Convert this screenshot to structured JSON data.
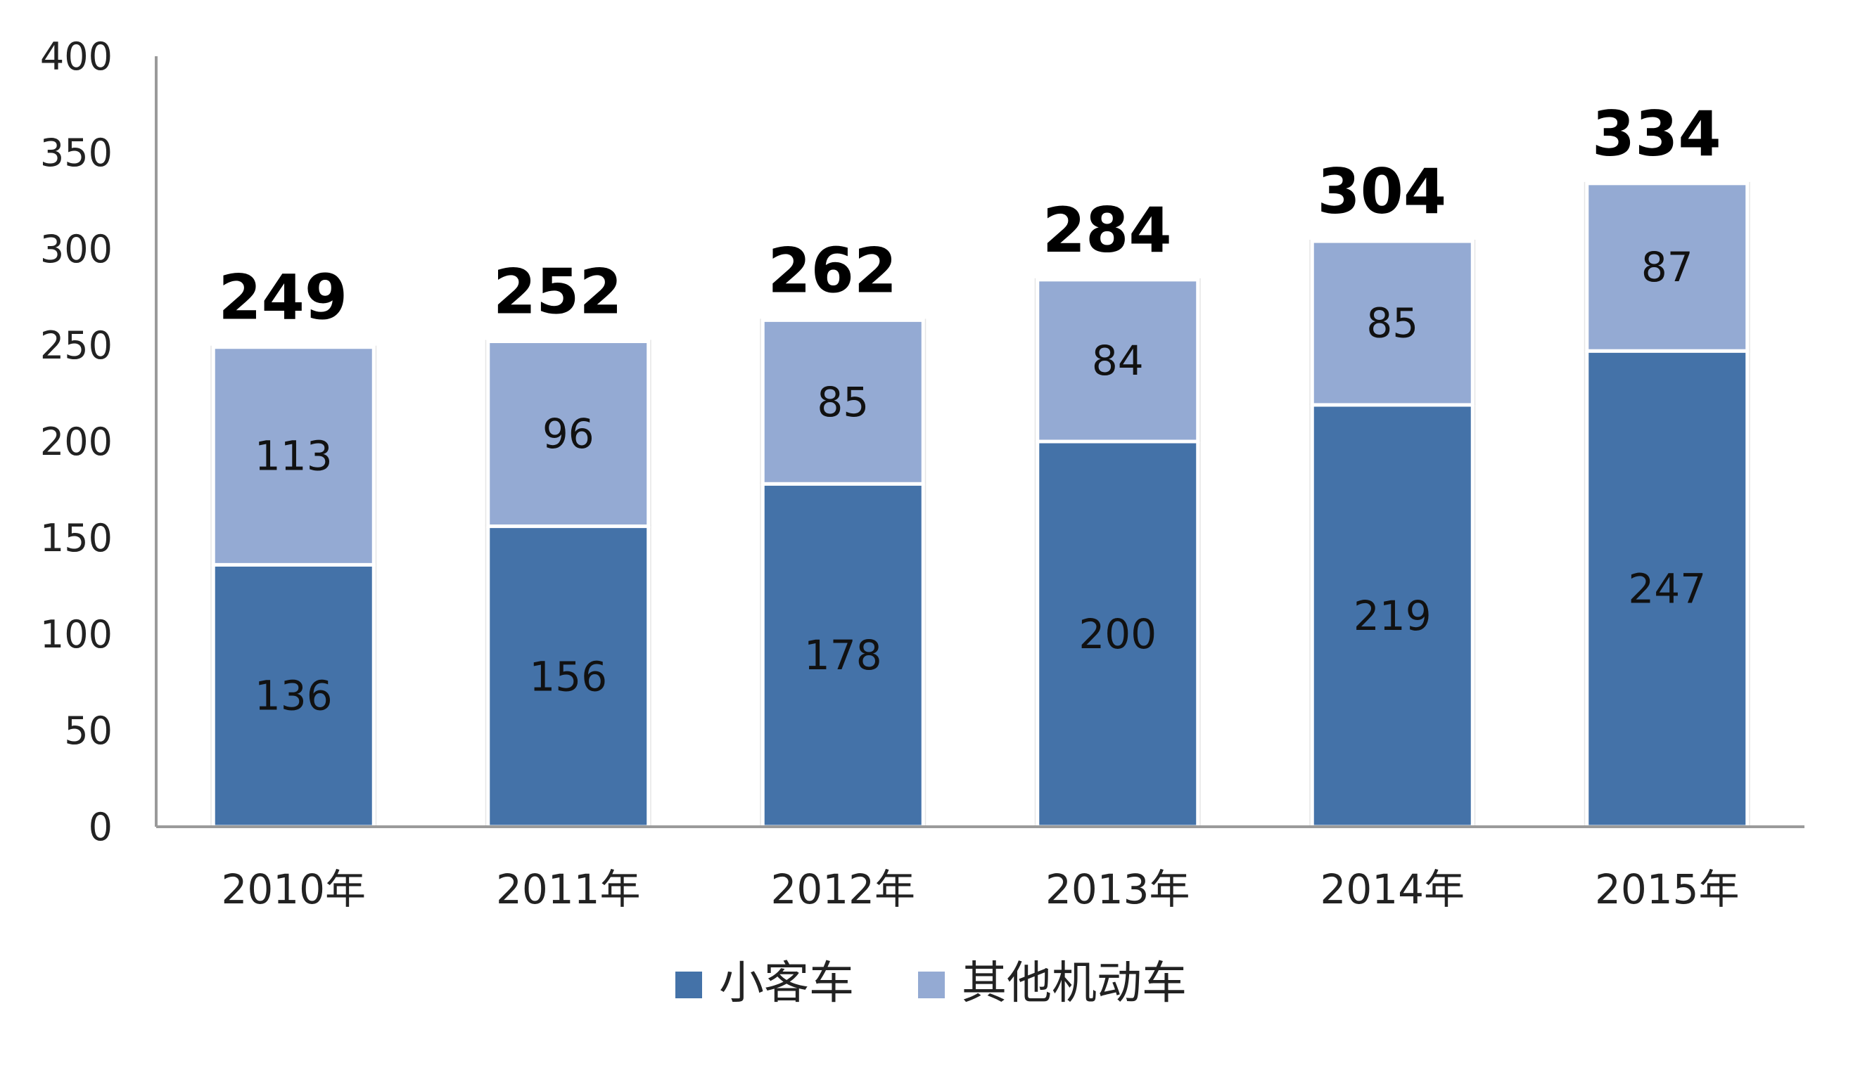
{
  "chart_data": {
    "type": "bar",
    "stacked": true,
    "categories": [
      "2010年",
      "2011年",
      "2012年",
      "2013年",
      "2014年",
      "2015年"
    ],
    "series": [
      {
        "name": "小客车",
        "values": [
          136,
          156,
          178,
          200,
          219,
          247
        ],
        "color": "#4472A8"
      },
      {
        "name": "其他机动车",
        "values": [
          113,
          96,
          85,
          84,
          85,
          87
        ],
        "color": "#94AAD3"
      }
    ],
    "totals": [
      249,
      252,
      262,
      284,
      304,
      334
    ],
    "ylim": [
      0,
      400
    ],
    "yticks": [
      0,
      50,
      100,
      150,
      200,
      250,
      300,
      350,
      400
    ],
    "title": "",
    "xlabel": "",
    "ylabel": "",
    "grid": false,
    "legend_position": "bottom-center"
  }
}
